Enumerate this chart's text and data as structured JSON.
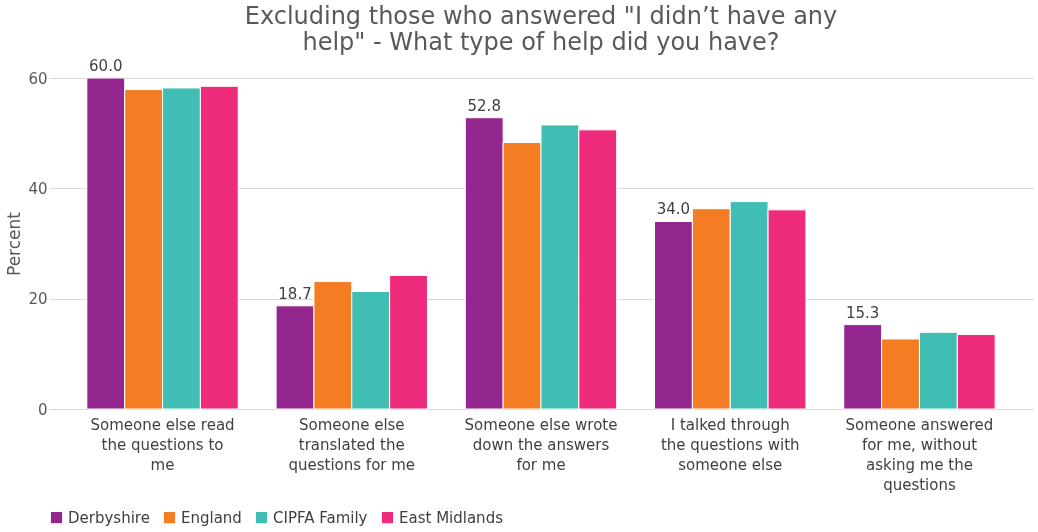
{
  "chart_data": {
    "type": "bar",
    "title": "Excluding those who answered \"I didn’t have any help\" - What type of help did you have?",
    "ylabel": "Percent",
    "categories": [
      "Someone else read the questions to me",
      "Someone else translated the questions for me",
      "Someone else wrote down the answers for me",
      "I talked through the questions with someone else",
      "Someone answered for me, without asking me the questions"
    ],
    "series": [
      {
        "name": "Derbyshire",
        "color": "#93278f",
        "values": [
          60.0,
          18.7,
          52.8,
          34.0,
          15.3
        ],
        "value_labels": [
          "60.0",
          "18.7",
          "52.8",
          "34.0",
          "15.3"
        ]
      },
      {
        "name": "England",
        "color": "#f47d23",
        "values": [
          57.9,
          23.1,
          48.3,
          36.3,
          12.7
        ]
      },
      {
        "name": "CIPFA Family",
        "color": "#41beb3",
        "values": [
          58.2,
          21.3,
          51.5,
          37.6,
          13.9
        ]
      },
      {
        "name": "East Midlands",
        "color": "#ee2a7b",
        "values": [
          58.5,
          24.2,
          50.6,
          36.1,
          13.5
        ]
      }
    ],
    "ylim": [
      0,
      60
    ],
    "yticks": [
      0,
      20,
      40,
      60
    ],
    "grid": "y",
    "legend": "bottom"
  }
}
